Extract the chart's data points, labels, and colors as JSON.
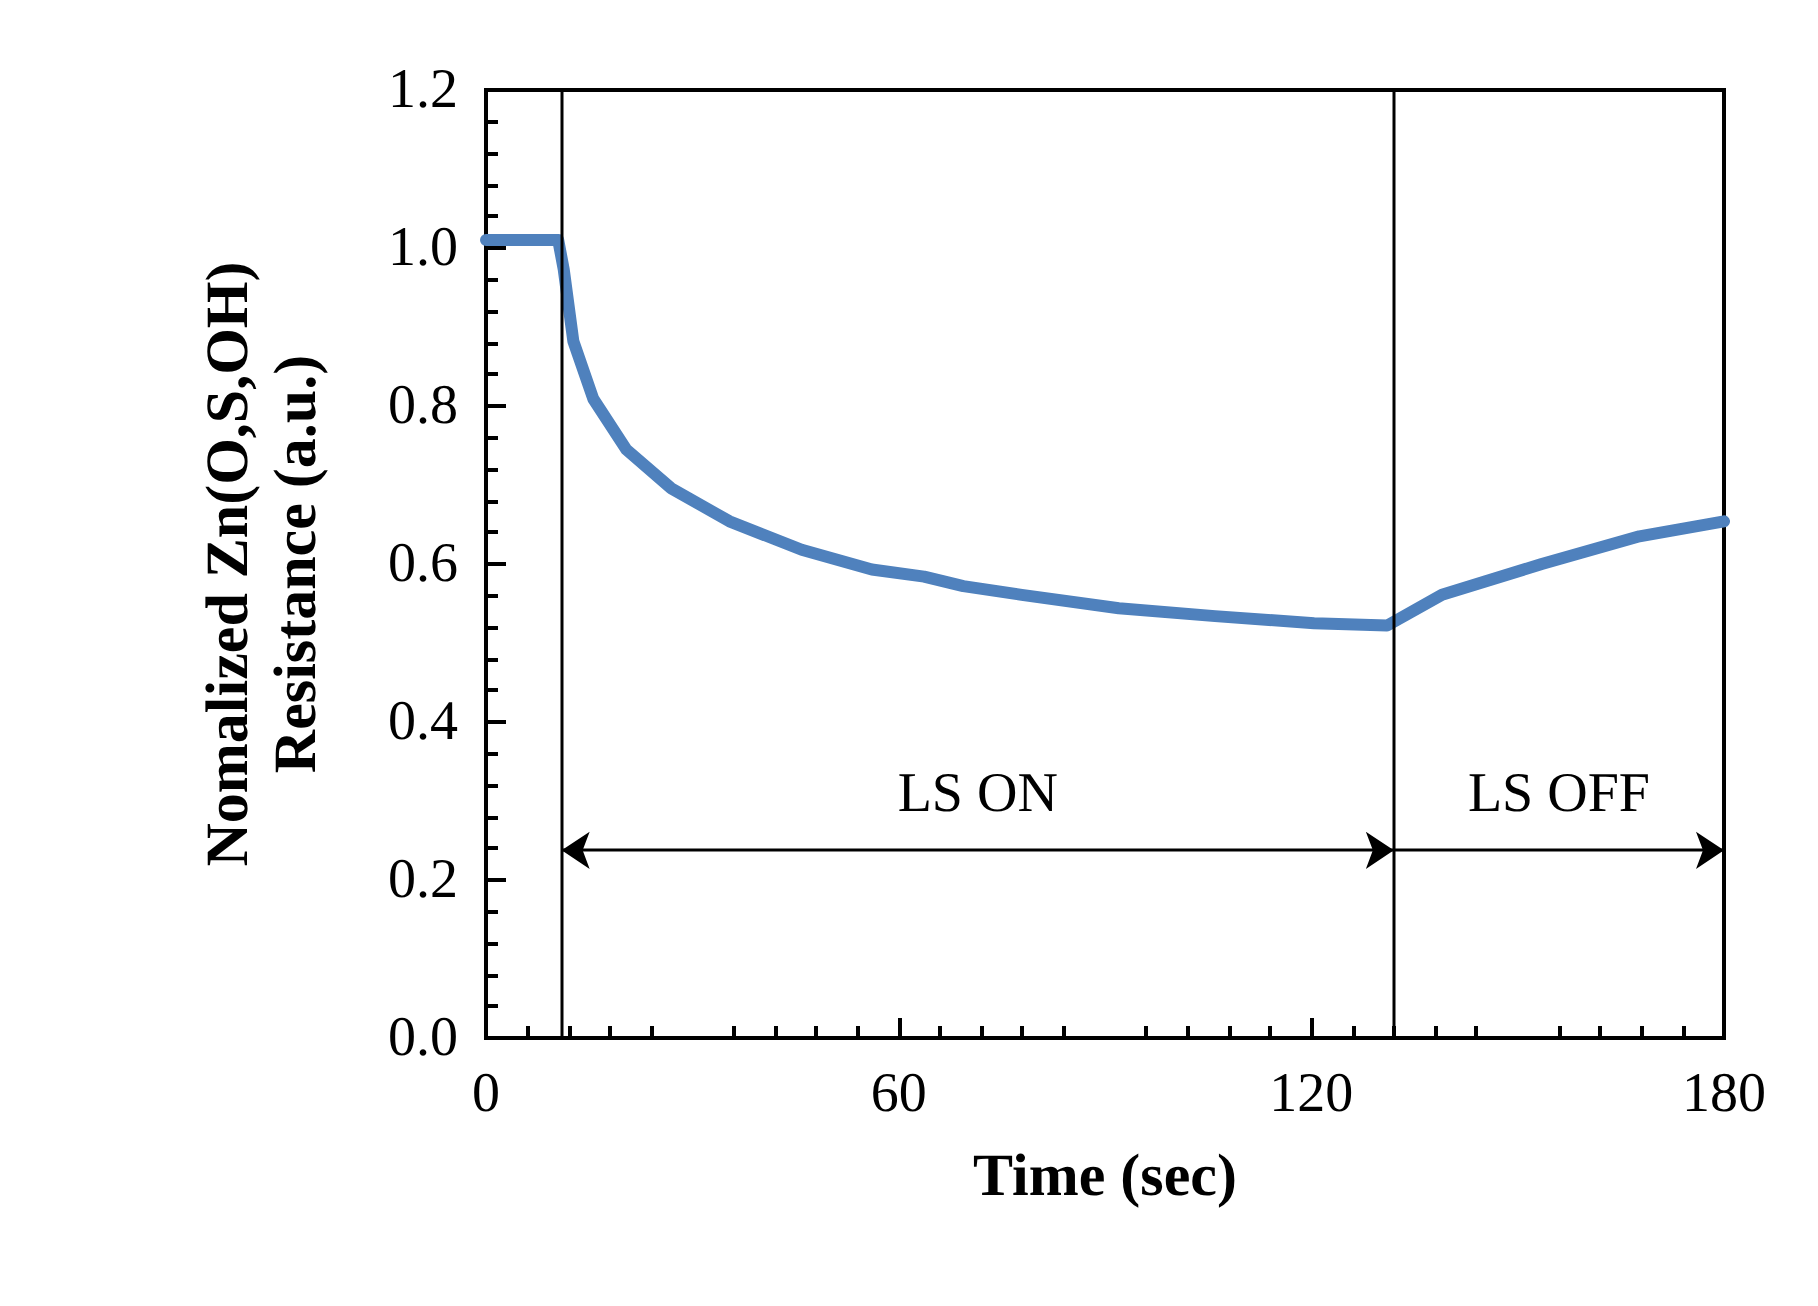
{
  "chart_data": {
    "type": "line",
    "xlabel": "Time (sec)",
    "ylabel": "Nomalized Zn(O,S,OH)\nResistance (a.u.)",
    "x": [
      0,
      10.5,
      11.3,
      12.7,
      15.6,
      20.4,
      26.9,
      35.4,
      45.9,
      56.1,
      63.7,
      69.4,
      77.9,
      92,
      106,
      120.4,
      131,
      139,
      153.5,
      167.7,
      180
    ],
    "series": [
      {
        "color": "#4f81bd",
        "values": [
          1.01,
          1.01,
          0.973,
          0.882,
          0.809,
          0.745,
          0.696,
          0.654,
          0.618,
          0.593,
          0.584,
          0.572,
          0.561,
          0.544,
          0.534,
          0.525,
          0.522,
          0.561,
          0.6,
          0.635,
          0.654
        ]
      }
    ],
    "xlim": [
      0,
      180
    ],
    "xticks": [
      0,
      60,
      120,
      180
    ],
    "ylim": [
      0,
      1.2
    ],
    "yticks": [
      {
        "value": 0,
        "label": "0.0"
      },
      {
        "value": 0.2,
        "label": "0.2"
      },
      {
        "value": 0.4,
        "label": "0.4"
      },
      {
        "value": 0.6,
        "label": "0.6"
      },
      {
        "value": 0.8,
        "label": "0.8"
      },
      {
        "value": 1,
        "label": "1.0"
      },
      {
        "value": 1.2,
        "label": "1.2"
      }
    ],
    "ref_lines": [
      {
        "axis": "x",
        "value": 11,
        "color": "#000000"
      },
      {
        "axis": "x",
        "value": 132,
        "color": "#000000"
      }
    ],
    "annotations": [
      "LS ON",
      "LS OFF"
    ],
    "grid": false,
    "marker": "none",
    "line_style": "solid"
  }
}
